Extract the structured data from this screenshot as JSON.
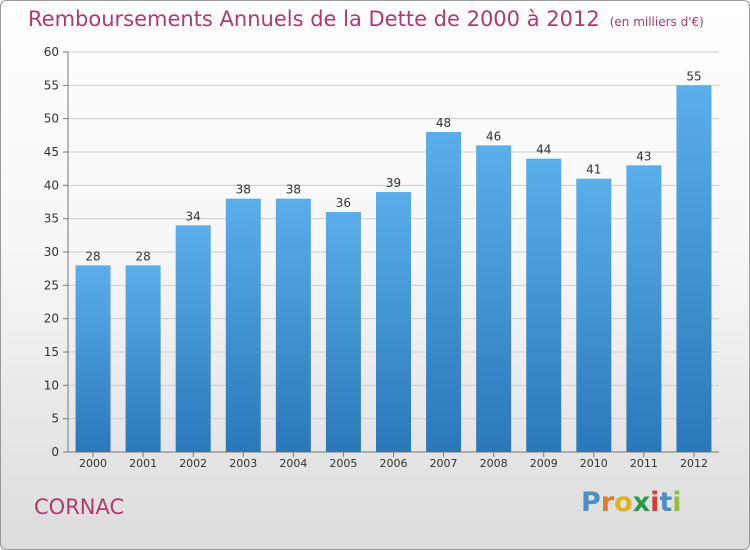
{
  "title": "Remboursements Annuels de la Dette de 2000 à 2012",
  "subtitle": "(en milliers d'€)",
  "city": "CORNAC",
  "logo": {
    "text": "Proxiti",
    "letters": [
      "P",
      "r",
      "o",
      "x",
      "i",
      "t",
      "i"
    ],
    "colors": [
      "#4a90c8",
      "#e07a2a",
      "#e0b020",
      "#2a9a4a",
      "#d23c3c",
      "#4a90c8",
      "#8fc03a"
    ]
  },
  "colors": {
    "bar": "#4a9fde",
    "bar_dark": "#2a78ba",
    "title": "#b03a6e",
    "grid": "#cccccc"
  },
  "chart_data": {
    "type": "bar",
    "categories": [
      "2000",
      "2001",
      "2002",
      "2003",
      "2004",
      "2005",
      "2006",
      "2007",
      "2008",
      "2009",
      "2010",
      "2011",
      "2012"
    ],
    "values": [
      28,
      28,
      34,
      38,
      38,
      36,
      39,
      48,
      46,
      44,
      41,
      43,
      55
    ],
    "ylim": [
      0,
      60
    ],
    "yticks": [
      0,
      5,
      10,
      15,
      20,
      25,
      30,
      35,
      40,
      45,
      50,
      55,
      60
    ],
    "grid": true
  }
}
